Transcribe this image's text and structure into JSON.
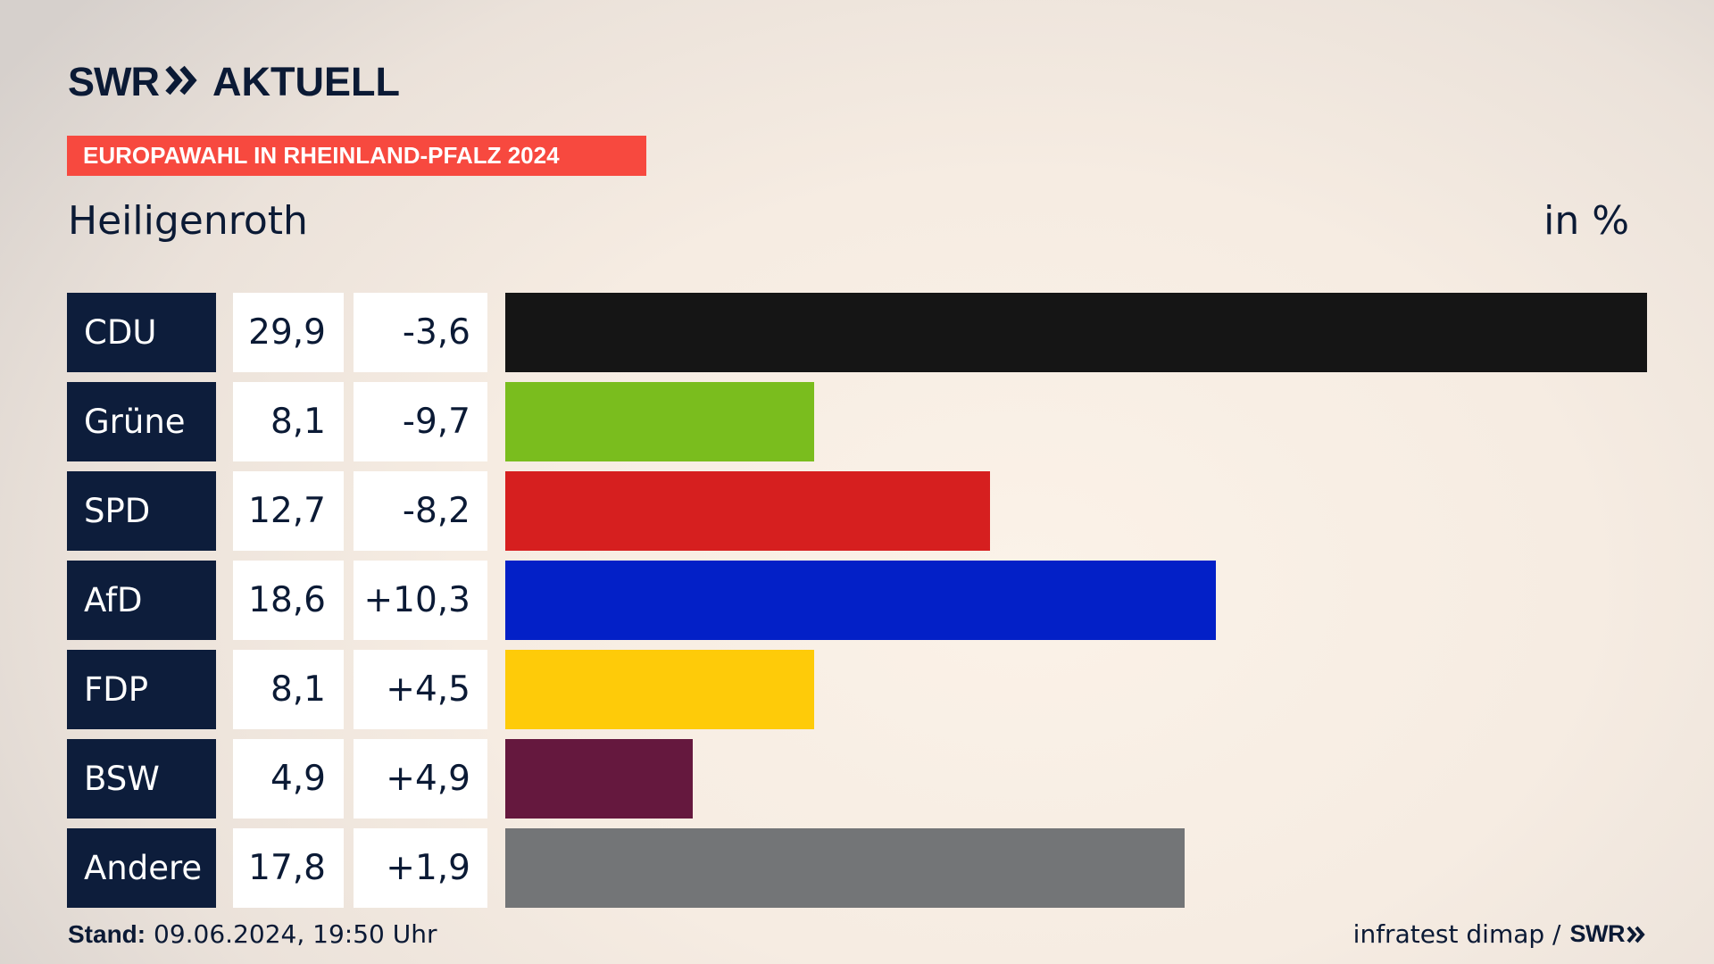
{
  "header": {
    "logo_brand": "SWR",
    "logo_suffix": "AKTUELL",
    "banner": "EUROPAWAHL IN RHEINLAND-PFALZ 2024"
  },
  "place": "Heiligenroth",
  "unit": "in %",
  "footer": {
    "stand_label": "Stand:",
    "stand_value": "09.06.2024, 19:50 Uhr",
    "source": "infratest dimap /",
    "source_brand": "SWR"
  },
  "chart_data": {
    "type": "bar",
    "orientation": "horizontal",
    "categories": [
      "CDU",
      "Grüne",
      "SPD",
      "AfD",
      "FDP",
      "BSW",
      "Andere"
    ],
    "values": [
      29.9,
      8.1,
      12.7,
      18.6,
      8.1,
      4.9,
      17.8
    ],
    "value_labels": [
      "29,9",
      "8,1",
      "12,7",
      "18,6",
      "8,1",
      "4,9",
      "17,8"
    ],
    "differences": [
      -3.6,
      -9.7,
      -8.2,
      10.3,
      4.5,
      4.9,
      1.9
    ],
    "difference_labels": [
      "-3,6",
      "-9,7",
      "-8,2",
      "+10,3",
      "+4,5",
      "+4,9",
      "+1,9"
    ],
    "colors": [
      "#151515",
      "#7abd1e",
      "#d61f1f",
      "#0320c7",
      "#fecb09",
      "#65183e",
      "#737577"
    ],
    "xlim": [
      0,
      29.9
    ]
  }
}
